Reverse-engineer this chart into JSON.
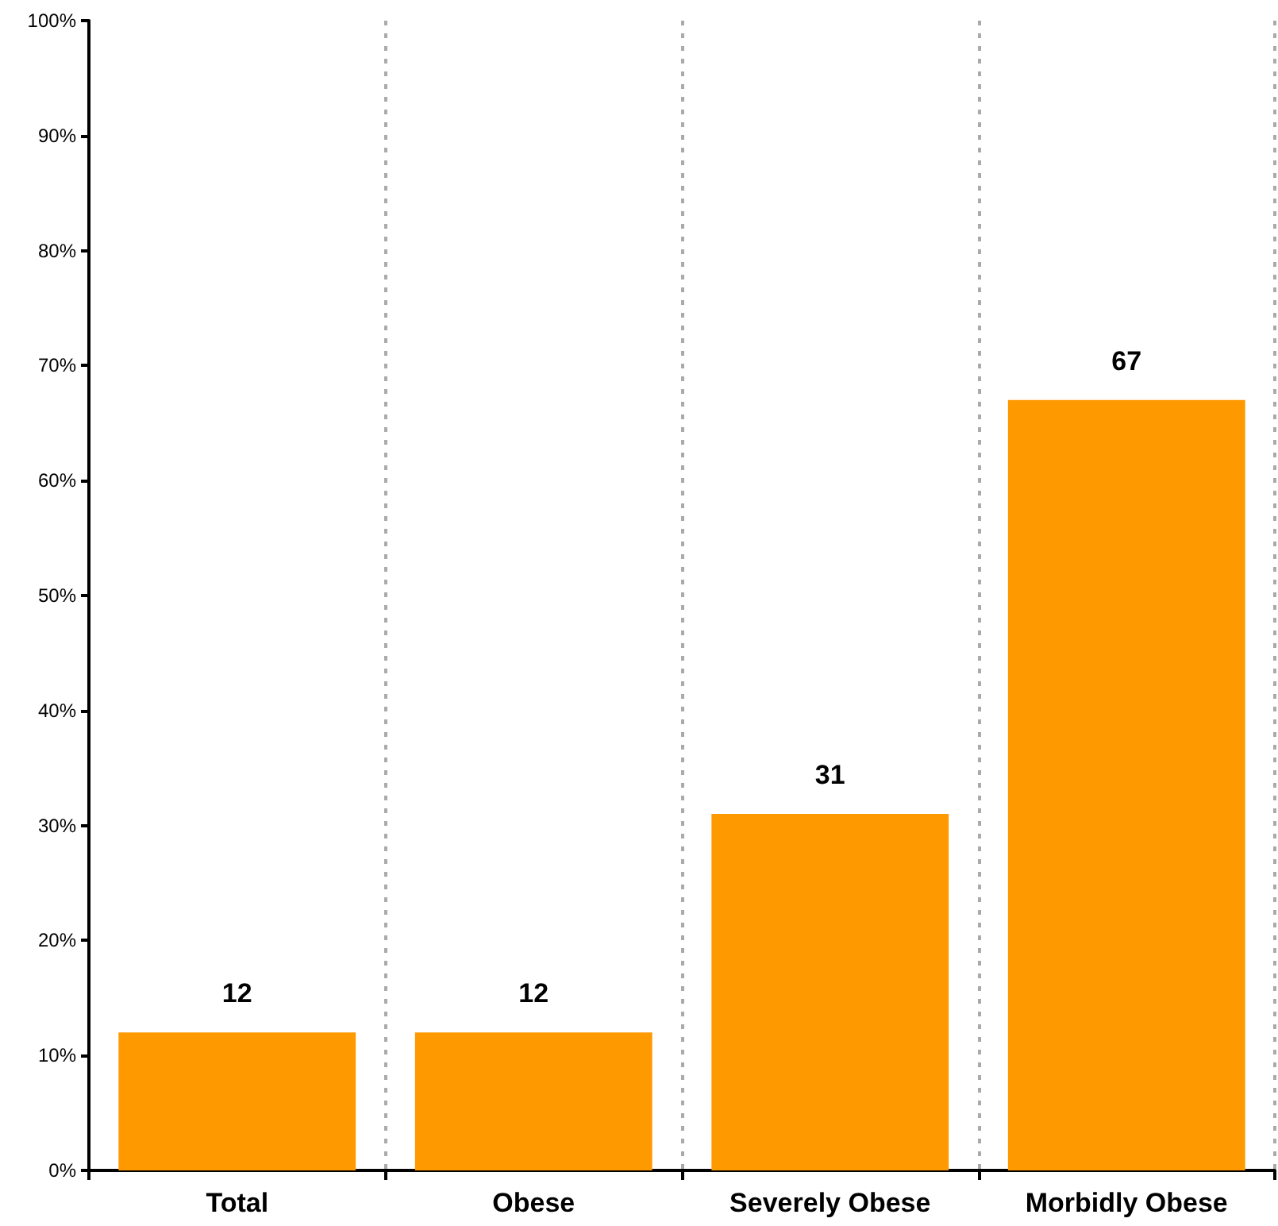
{
  "chart_data": {
    "type": "bar",
    "categories": [
      "Total",
      "Obese",
      "Severely Obese",
      "Morbidly Obese"
    ],
    "values": [
      12,
      12,
      31,
      67
    ],
    "color": "#ff9900",
    "data_labels": true,
    "grid": "x",
    "ylim": [
      0,
      100
    ],
    "yticks": [
      {
        "value": 0,
        "label": "0%"
      },
      {
        "value": 10,
        "label": "10%"
      },
      {
        "value": 20,
        "label": "20%"
      },
      {
        "value": 30,
        "label": "30%"
      },
      {
        "value": 40,
        "label": "40%"
      },
      {
        "value": 50,
        "label": "50%"
      },
      {
        "value": 60,
        "label": "60%"
      },
      {
        "value": 70,
        "label": "70%"
      },
      {
        "value": 80,
        "label": "80%"
      },
      {
        "value": 90,
        "label": "90%"
      },
      {
        "value": 100,
        "label": "100%"
      }
    ]
  }
}
